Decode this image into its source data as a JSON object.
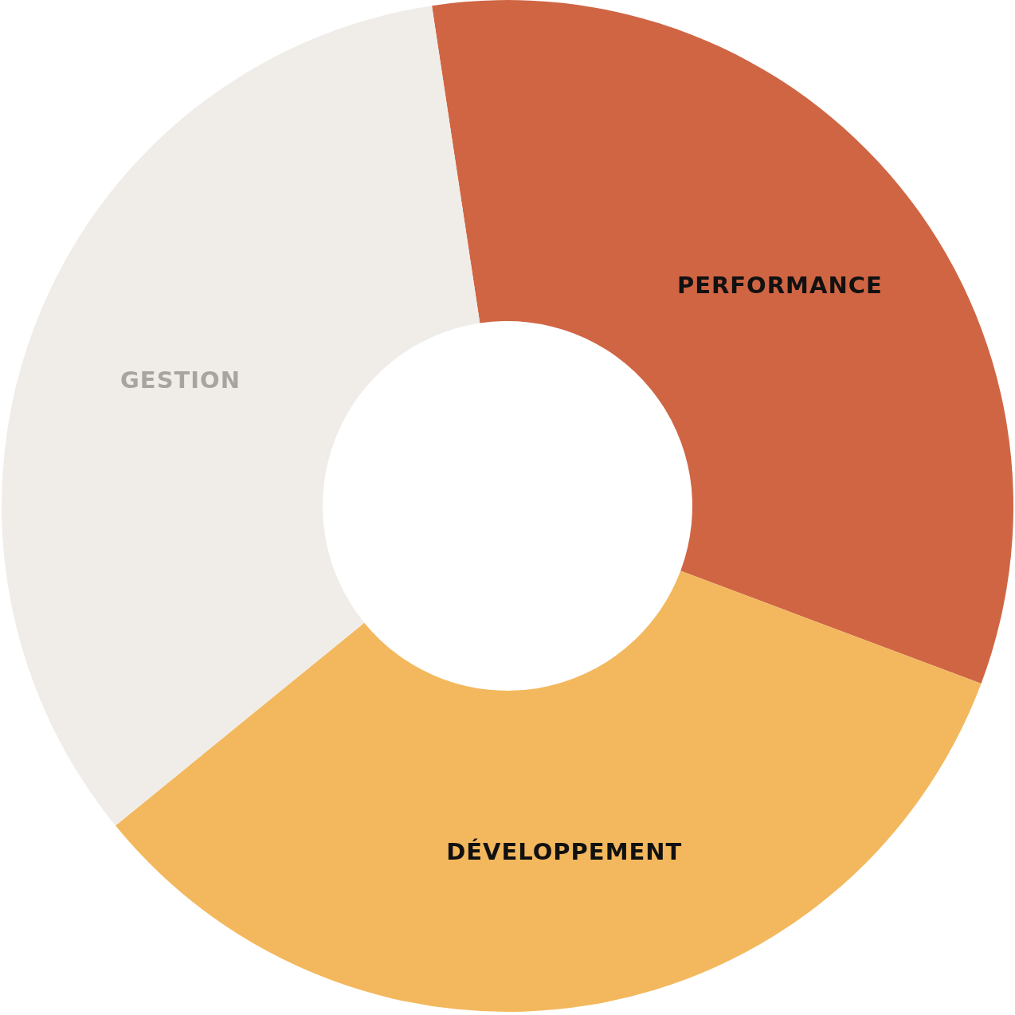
{
  "chart_data": {
    "type": "donut",
    "categories": [
      "PERFORMANCE",
      "DÉVELOPPEMENT",
      "GESTION"
    ],
    "values": [
      33.1,
      33.4,
      33.5
    ],
    "colors": [
      "#d06544",
      "#f3b85d",
      "#f0ede9"
    ]
  }
}
